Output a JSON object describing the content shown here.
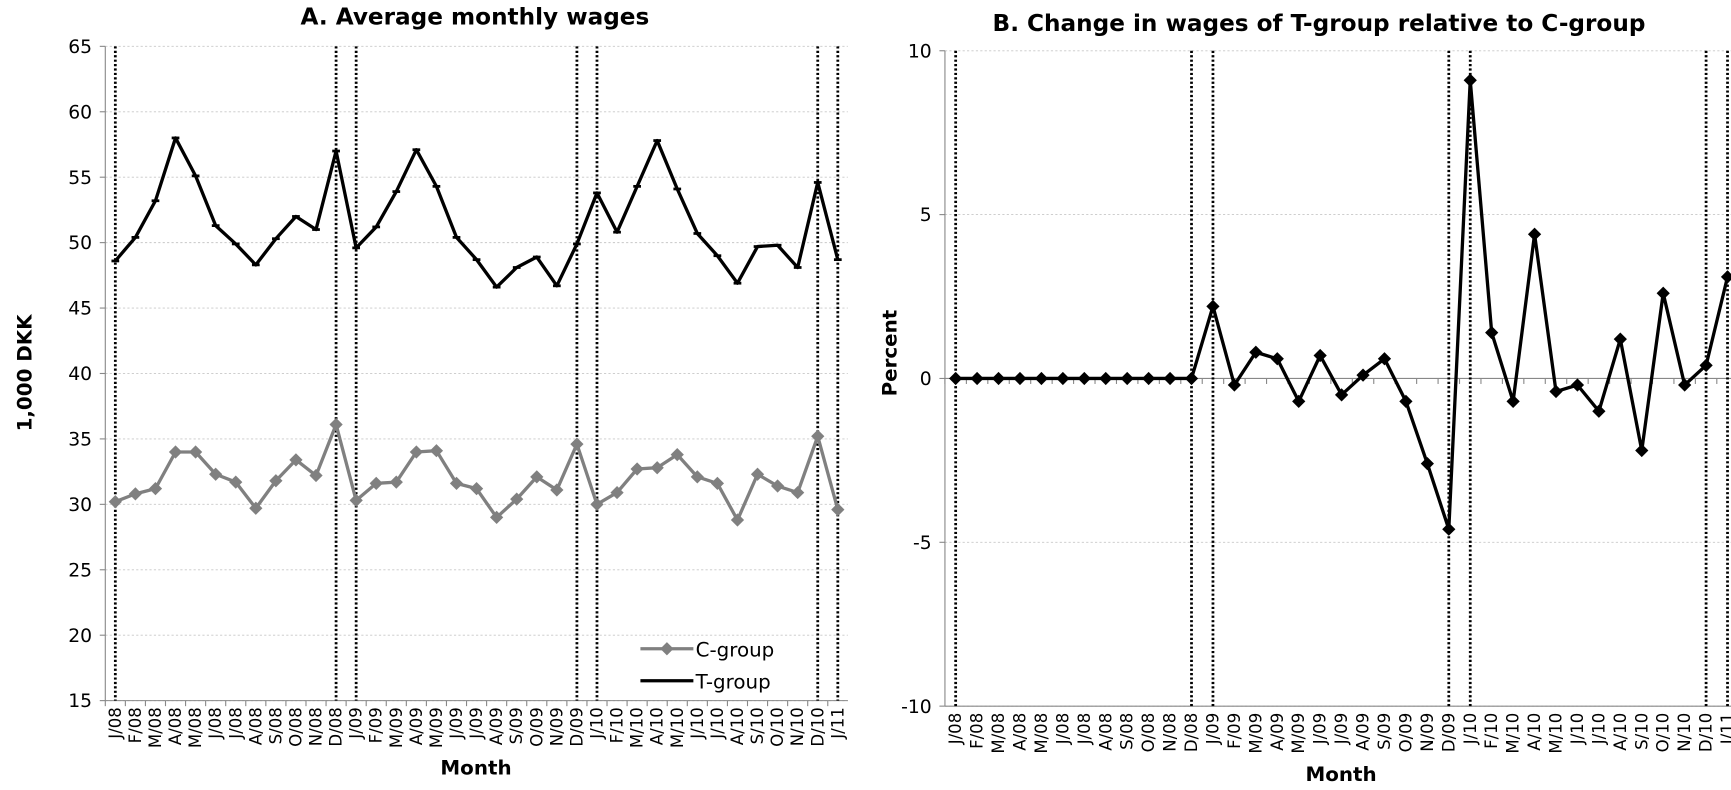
{
  "chart_data": [
    {
      "type": "line",
      "title": "A. Average monthly wages",
      "x_label": "Month",
      "y_label": "1,000 DKK",
      "categories": [
        "J/08",
        "F/08",
        "M/08",
        "A/08",
        "M/08",
        "J/08",
        "J/08",
        "A/08",
        "S/08",
        "O/08",
        "N/08",
        "D/08",
        "J/09",
        "F/09",
        "M/09",
        "A/09",
        "M/09",
        "J/09",
        "J/09",
        "A/09",
        "S/09",
        "O/09",
        "N/09",
        "D/09",
        "J/10",
        "F/10",
        "M/10",
        "A/10",
        "M/10",
        "J/10",
        "J/10",
        "A/10",
        "S/10",
        "O/10",
        "N/10",
        "D/10",
        "J/11"
      ],
      "series": [
        {
          "name": "C-group",
          "color": "#808080",
          "marker": "diamond",
          "values": [
            30.2,
            30.8,
            31.2,
            34.0,
            34.0,
            32.3,
            31.7,
            29.7,
            31.8,
            33.4,
            32.2,
            36.1,
            30.3,
            31.6,
            31.7,
            34.0,
            34.1,
            31.6,
            31.2,
            29.0,
            30.4,
            32.1,
            31.1,
            34.6,
            30.0,
            30.9,
            32.7,
            32.8,
            33.8,
            32.1,
            31.6,
            28.8,
            32.3,
            31.4,
            30.9,
            35.2,
            29.6
          ]
        },
        {
          "name": "T-group",
          "color": "#000000",
          "marker": "dash",
          "values": [
            48.6,
            50.4,
            53.2,
            58.0,
            55.1,
            51.3,
            49.9,
            48.3,
            50.3,
            52.0,
            51.0,
            57.0,
            49.6,
            51.2,
            53.9,
            57.1,
            54.3,
            50.4,
            48.7,
            46.6,
            48.1,
            48.9,
            46.7,
            49.9,
            53.8,
            50.8,
            54.3,
            57.8,
            54.1,
            50.7,
            49.0,
            46.9,
            49.7,
            49.8,
            48.1,
            54.6,
            48.7
          ]
        }
      ],
      "ylim": [
        15,
        65
      ],
      "yticks": [
        15,
        20,
        25,
        30,
        35,
        40,
        45,
        50,
        55,
        60,
        65
      ],
      "grid": true,
      "legend": "lower right"
    },
    {
      "type": "line",
      "title": "B. Change in wages of T-group relative to C-group",
      "x_label": "Month",
      "y_label": "Percent",
      "categories": [
        "J/08",
        "F/08",
        "M/08",
        "A/08",
        "M/08",
        "J/08",
        "J/08",
        "A/08",
        "S/08",
        "O/08",
        "N/08",
        "D/08",
        "J/09",
        "F/09",
        "M/09",
        "A/09",
        "M/09",
        "J/09",
        "J/09",
        "A/09",
        "S/09",
        "O/09",
        "N/09",
        "D/09",
        "J/10",
        "F/10",
        "M/10",
        "A/10",
        "M/10",
        "J/10",
        "J/10",
        "A/10",
        "S/10",
        "O/10",
        "N/10",
        "D/10",
        "J/11"
      ],
      "series": [
        {
          "color": "#000000",
          "marker": "diamond",
          "values": [
            0,
            0,
            0,
            0,
            0,
            0,
            0,
            0,
            0,
            0,
            0,
            0,
            2.2,
            -0.2,
            0.8,
            0.6,
            -0.7,
            0.7,
            -0.5,
            0.1,
            0.6,
            -0.7,
            -2.6,
            -4.6,
            9.1,
            1.4,
            -0.7,
            4.4,
            -0.4,
            -0.2,
            -1.0,
            1.2,
            -2.2,
            2.6,
            -0.2,
            0.4,
            3.1
          ]
        }
      ],
      "ylim": [
        -10,
        10
      ],
      "yticks": [
        -10,
        -5,
        0,
        5,
        10
      ],
      "grid": true
    }
  ]
}
